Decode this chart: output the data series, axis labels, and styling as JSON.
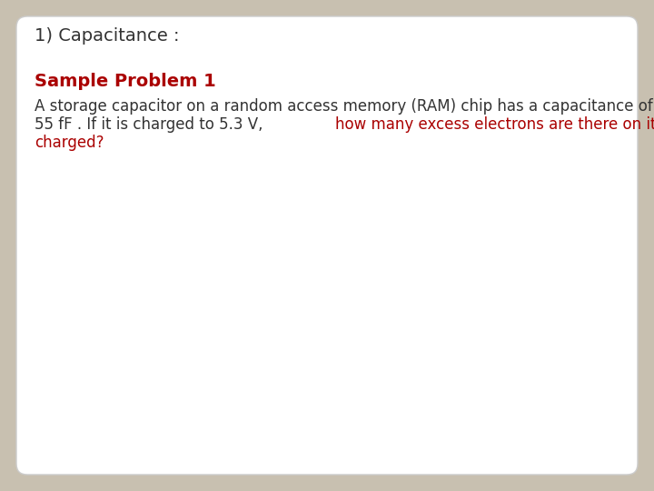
{
  "background_color": "#c8c0b0",
  "card_color": "#ffffff",
  "card_edge_color": "#cccccc",
  "title_text": "1) Capacitance :",
  "title_color": "#333333",
  "title_fontsize": 14,
  "subtitle_text": "Sample Problem 1",
  "subtitle_color": "#aa0000",
  "subtitle_fontsize": 14,
  "line1_black": "A storage capacitor on a random access memory (RAM) chip has a capacitance of",
  "line2_black": "55 fF . If it is charged to 5.3 V, ",
  "line2_red": "how many excess electrons are there on its",
  "line3_red": "charged?",
  "body_black_color": "#333333",
  "body_red_color": "#aa0000",
  "body_fontsize": 12,
  "font_family": "DejaVu Sans"
}
